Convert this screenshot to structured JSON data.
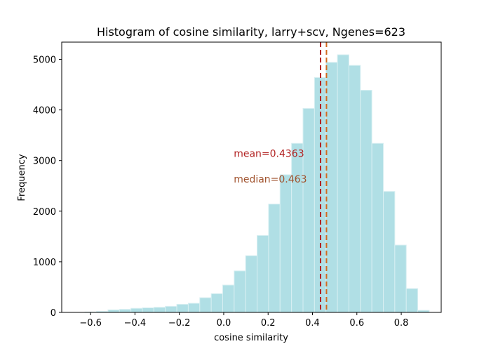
{
  "chart_data": {
    "type": "bar",
    "title": "Histogram of cosine similarity, larry+scv, Ngenes=623",
    "xlabel": "cosine similarity",
    "ylabel": "Frequency",
    "xlim": [
      -0.73,
      0.98
    ],
    "ylim": [
      0,
      5340
    ],
    "xticks": [
      -0.6,
      -0.4,
      -0.2,
      0.0,
      0.2,
      0.4,
      0.6,
      0.8
    ],
    "xtick_labels": [
      "−0.6",
      "−0.4",
      "−0.2",
      "0.0",
      "0.2",
      "0.4",
      "0.6",
      "0.8"
    ],
    "yticks": [
      0,
      1000,
      2000,
      3000,
      4000,
      5000
    ],
    "ytick_labels": [
      "0",
      "1000",
      "2000",
      "3000",
      "4000",
      "5000"
    ],
    "grid": false,
    "legend": "none",
    "bin_start": -0.625,
    "bin_width": 0.0517,
    "counts": [
      8,
      20,
      50,
      60,
      80,
      90,
      100,
      120,
      160,
      180,
      290,
      370,
      540,
      820,
      1120,
      1520,
      2140,
      2720,
      3340,
      4030,
      4640,
      4940,
      5090,
      4880,
      4390,
      3340,
      2390,
      1330,
      470,
      40
    ],
    "bar_color": "#b0dfe5",
    "bar_edge_color": "#d8eff2",
    "mean": {
      "value": 0.4363,
      "label": "mean=0.4363",
      "color": "#b22222"
    },
    "median": {
      "value": 0.463,
      "label": "median=0.463",
      "color": "#d2691e",
      "text_color": "#a0522d"
    }
  }
}
